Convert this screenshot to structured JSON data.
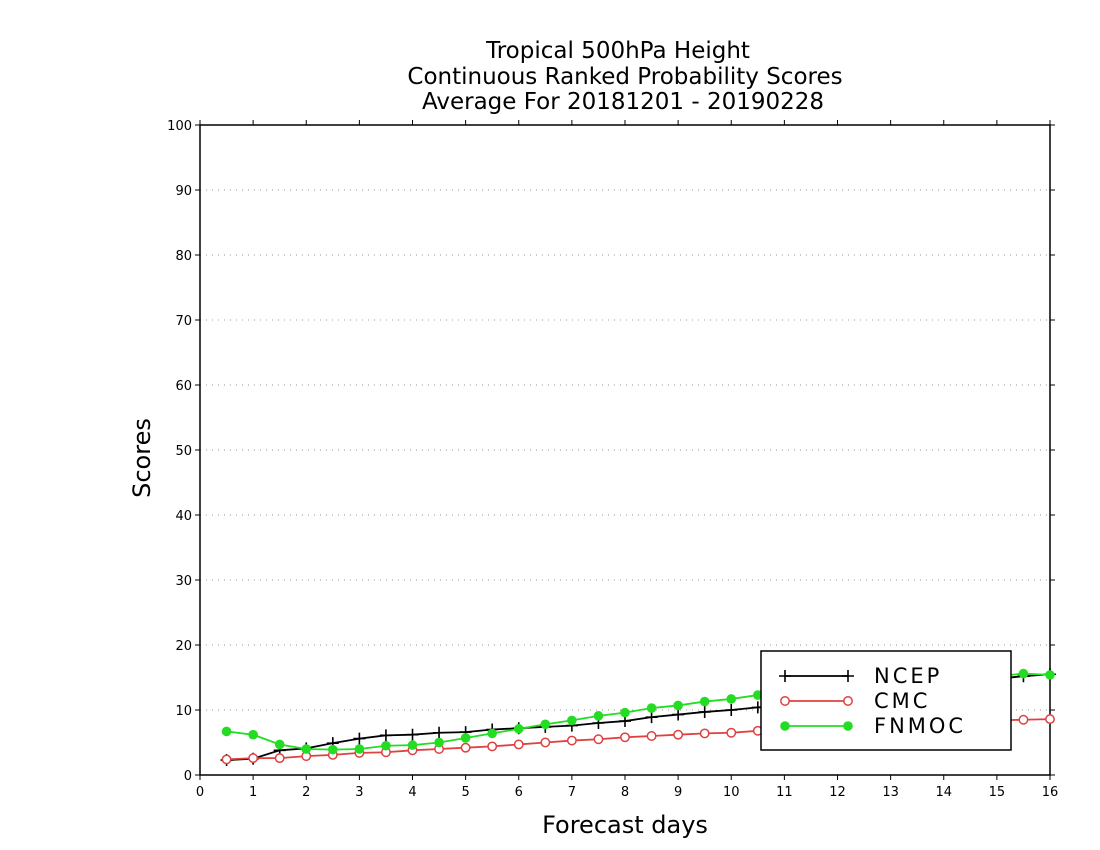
{
  "chart_data": {
    "type": "line",
    "title": [
      "Tropical 500hPa Height",
      "Continuous Ranked Probability Scores",
      "Average For 20181201 - 20190228"
    ],
    "xlabel": "Forecast days",
    "ylabel": "Scores",
    "xlim": [
      0,
      16
    ],
    "ylim": [
      0,
      100
    ],
    "x_ticks": [
      "0",
      "1",
      "2",
      "3",
      "4",
      "5",
      "6",
      "7",
      "8",
      "9",
      "10",
      "11",
      "12",
      "13",
      "14",
      "15",
      "16"
    ],
    "y_ticks": [
      "0",
      "10",
      "20",
      "30",
      "40",
      "50",
      "60",
      "70",
      "80",
      "90",
      "100"
    ],
    "grid": "horizontal dotted",
    "legend_position": "bottom-right",
    "x": [
      0.5,
      1,
      1.5,
      2,
      2.5,
      3,
      3.5,
      4,
      4.5,
      5,
      5.5,
      6,
      6.5,
      7,
      7.5,
      8,
      8.5,
      9,
      9.5,
      10,
      10.5,
      11,
      11.5,
      12,
      12.5,
      13,
      13.5,
      14,
      14.5,
      15,
      15.5,
      16
    ],
    "series": [
      {
        "name": "NCEP",
        "color": "#000000",
        "marker": "plus",
        "values": [
          2.3,
          2.5,
          3.8,
          4.1,
          4.9,
          5.6,
          6.1,
          6.2,
          6.5,
          6.6,
          7.0,
          7.2,
          7.4,
          7.6,
          8.0,
          8.3,
          8.9,
          9.3,
          9.7,
          10.0,
          10.4,
          10.8,
          11.3,
          11.8,
          12.3,
          12.8,
          13.3,
          13.8,
          14.3,
          14.8,
          15.2,
          15.5
        ]
      },
      {
        "name": "CMC",
        "color": "#e04040",
        "marker": "open-circle",
        "values": [
          2.4,
          2.6,
          2.6,
          2.9,
          3.1,
          3.4,
          3.5,
          3.8,
          4.0,
          4.2,
          4.4,
          4.7,
          5.0,
          5.3,
          5.5,
          5.8,
          6.0,
          6.2,
          6.4,
          6.5,
          6.8,
          7.0,
          7.2,
          7.4,
          7.6,
          7.8,
          8.0,
          8.1,
          8.3,
          8.4,
          8.5,
          8.6
        ]
      },
      {
        "name": "FNMOC",
        "color": "#22dd22",
        "marker": "filled-circle",
        "values": [
          6.7,
          6.2,
          4.7,
          4.0,
          3.9,
          4.0,
          4.5,
          4.6,
          5.0,
          5.7,
          6.4,
          7.1,
          7.8,
          8.4,
          9.1,
          9.6,
          10.3,
          10.7,
          11.3,
          11.7,
          12.3,
          12.7,
          13.1,
          13.4,
          13.8,
          14.2,
          14.5,
          14.8,
          15.0,
          15.2,
          15.6,
          15.4
        ]
      }
    ]
  }
}
